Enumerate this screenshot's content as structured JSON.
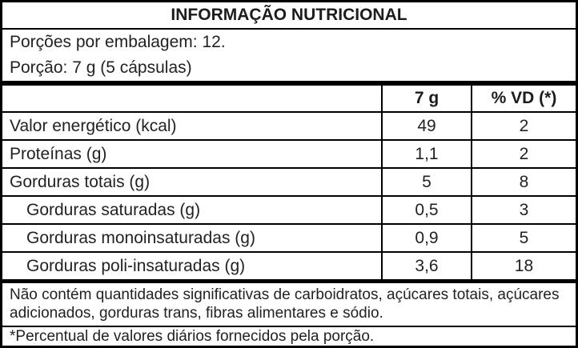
{
  "table": {
    "title": "INFORMAÇÃO NUTRICIONAL",
    "serving_info": {
      "servings_per_package": "Porções por embalagem: 12.",
      "serving_size": "Porção: 7 g (5 cápsulas)"
    },
    "columns": {
      "amount_header": "7 g",
      "daily_value_header": "% VD (*)"
    },
    "rows": [
      {
        "label": "Valor energético (kcal)",
        "amount": "49",
        "daily_value": "2"
      },
      {
        "label": "Proteínas (g)",
        "amount": "1,1",
        "daily_value": "2"
      },
      {
        "label": "Gorduras totais (g)",
        "amount": "5",
        "daily_value": "8"
      },
      {
        "label": "Gorduras saturadas (g)",
        "amount": "0,5",
        "daily_value": "3"
      },
      {
        "label": "Gorduras monoinsaturadas (g)",
        "amount": "0,9",
        "daily_value": "5"
      },
      {
        "label": "Gorduras poli-insaturadas (g)",
        "amount": "3,6",
        "daily_value": "18"
      }
    ],
    "notes": {
      "no_significant_amounts": "Não contém quantidades significativas de carboidratos, açúcares totais, açúcares adicionados, gorduras trans, fibras alimentares e sódio.",
      "daily_value_footnote": "*Percentual de valores diários fornecidos pela porção."
    },
    "colors": {
      "border": "#000000",
      "text": "#222222",
      "background": "#ffffff"
    }
  }
}
